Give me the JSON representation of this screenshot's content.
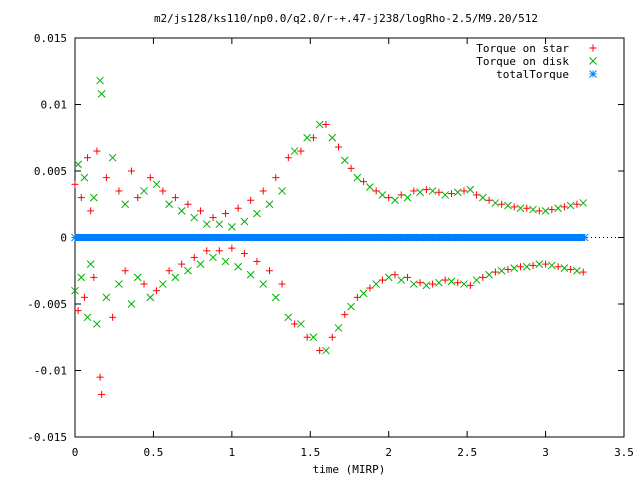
{
  "chart_data": {
    "type": "scatter",
    "title": "m2/js128/ks110/np0.0/q2.0/r-+.47-j238/logRho-2.5/M9.20/512",
    "xlabel": "time (MIRP)",
    "ylabel": "",
    "xlim": [
      0,
      3.5
    ],
    "ylim": [
      -0.015,
      0.015
    ],
    "x_ticks": [
      "0",
      "0.5",
      "1",
      "1.5",
      "2",
      "2.5",
      "3",
      "3.5"
    ],
    "y_ticks": [
      "0.015",
      "0.01",
      "0.005",
      "0",
      "-0.005",
      "-0.01",
      "-0.015"
    ],
    "legend_position": "top-right",
    "series": [
      {
        "name": "Torque on star",
        "marker": "plus",
        "color": "#ff0000",
        "x": [
          0.0,
          0.02,
          0.04,
          0.06,
          0.08,
          0.1,
          0.12,
          0.14,
          0.16,
          0.17,
          0.2,
          0.24,
          0.28,
          0.32,
          0.36,
          0.4,
          0.44,
          0.48,
          0.52,
          0.56,
          0.6,
          0.64,
          0.68,
          0.72,
          0.76,
          0.8,
          0.84,
          0.88,
          0.92,
          0.96,
          1.0,
          1.04,
          1.08,
          1.12,
          1.16,
          1.2,
          1.24,
          1.28,
          1.32,
          1.36,
          1.4,
          1.44,
          1.48,
          1.52,
          1.56,
          1.6,
          1.64,
          1.68,
          1.72,
          1.76,
          1.8,
          1.84,
          1.88,
          1.92,
          1.96,
          2.0,
          2.04,
          2.08,
          2.12,
          2.16,
          2.2,
          2.24,
          2.28,
          2.32,
          2.36,
          2.4,
          2.44,
          2.48,
          2.52,
          2.56,
          2.6,
          2.64,
          2.68,
          2.72,
          2.76,
          2.8,
          2.84,
          2.88,
          2.92,
          2.96,
          3.0,
          3.04,
          3.08,
          3.12,
          3.16,
          3.2,
          3.24
        ],
        "y": [
          0.004,
          -0.0055,
          0.003,
          -0.0045,
          0.006,
          0.002,
          -0.003,
          0.0065,
          -0.0105,
          -0.0118,
          0.0045,
          -0.006,
          0.0035,
          -0.0025,
          0.005,
          0.003,
          -0.0035,
          0.0045,
          -0.004,
          0.0035,
          -0.0025,
          0.003,
          -0.002,
          0.0025,
          -0.0015,
          0.002,
          -0.001,
          0.0015,
          -0.001,
          0.0018,
          -0.0008,
          0.0022,
          -0.0012,
          0.0028,
          -0.0018,
          0.0035,
          -0.0025,
          0.0045,
          -0.0035,
          0.006,
          -0.0065,
          0.0065,
          -0.0075,
          0.0075,
          -0.0085,
          0.0085,
          -0.0075,
          0.0068,
          -0.0058,
          0.0052,
          -0.0045,
          0.0042,
          -0.0038,
          0.0035,
          -0.0032,
          0.003,
          -0.0028,
          0.0032,
          -0.003,
          0.0035,
          -0.0034,
          0.0036,
          -0.0035,
          0.0034,
          -0.0032,
          0.0033,
          -0.0034,
          0.0035,
          -0.0036,
          0.0032,
          -0.003,
          0.0028,
          -0.0026,
          0.0025,
          -0.0024,
          0.0023,
          -0.0022,
          0.0022,
          -0.0021,
          0.002,
          -0.002,
          0.0021,
          -0.0022,
          0.0023,
          -0.0024,
          0.0025,
          -0.0026
        ]
      },
      {
        "name": "Torque on disk",
        "marker": "cross",
        "color": "#00b000",
        "x": [
          0.0,
          0.02,
          0.04,
          0.06,
          0.08,
          0.1,
          0.12,
          0.14,
          0.16,
          0.17,
          0.2,
          0.24,
          0.28,
          0.32,
          0.36,
          0.4,
          0.44,
          0.48,
          0.52,
          0.56,
          0.6,
          0.64,
          0.68,
          0.72,
          0.76,
          0.8,
          0.84,
          0.88,
          0.92,
          0.96,
          1.0,
          1.04,
          1.08,
          1.12,
          1.16,
          1.2,
          1.24,
          1.28,
          1.32,
          1.36,
          1.4,
          1.44,
          1.48,
          1.52,
          1.56,
          1.6,
          1.64,
          1.68,
          1.72,
          1.76,
          1.8,
          1.84,
          1.88,
          1.92,
          1.96,
          2.0,
          2.04,
          2.08,
          2.12,
          2.16,
          2.2,
          2.24,
          2.28,
          2.32,
          2.36,
          2.4,
          2.44,
          2.48,
          2.52,
          2.56,
          2.6,
          2.64,
          2.68,
          2.72,
          2.76,
          2.8,
          2.84,
          2.88,
          2.92,
          2.96,
          3.0,
          3.04,
          3.08,
          3.12,
          3.16,
          3.2,
          3.24
        ],
        "y": [
          -0.004,
          0.0055,
          -0.003,
          0.0045,
          -0.006,
          -0.002,
          0.003,
          -0.0065,
          0.0118,
          0.0108,
          -0.0045,
          0.006,
          -0.0035,
          0.0025,
          -0.005,
          -0.003,
          0.0035,
          -0.0045,
          0.004,
          -0.0035,
          0.0025,
          -0.003,
          0.002,
          -0.0025,
          0.0015,
          -0.002,
          0.001,
          -0.0015,
          0.001,
          -0.0018,
          0.0008,
          -0.0022,
          0.0012,
          -0.0028,
          0.0018,
          -0.0035,
          0.0025,
          -0.0045,
          0.0035,
          -0.006,
          0.0065,
          -0.0065,
          0.0075,
          -0.0075,
          0.0085,
          -0.0085,
          0.0075,
          -0.0068,
          0.0058,
          -0.0052,
          0.0045,
          -0.0042,
          0.0038,
          -0.0035,
          0.0032,
          -0.003,
          0.0028,
          -0.0032,
          0.003,
          -0.0035,
          0.0034,
          -0.0036,
          0.0035,
          -0.0034,
          0.0032,
          -0.0033,
          0.0034,
          -0.0035,
          0.0036,
          -0.0032,
          0.003,
          -0.0028,
          0.0026,
          -0.0025,
          0.0024,
          -0.0023,
          0.0022,
          -0.0022,
          0.0021,
          -0.002,
          0.002,
          -0.0021,
          0.0022,
          -0.0023,
          0.0024,
          -0.0025,
          0.0026
        ]
      },
      {
        "name": "totalTorque",
        "marker": "star",
        "color": "#0080ff",
        "x": [
          0.0,
          0.1,
          0.2,
          0.3,
          0.4,
          0.5,
          0.6,
          0.7,
          0.8,
          0.9,
          1.0,
          1.1,
          1.2,
          1.3,
          1.4,
          1.5,
          1.6,
          1.7,
          1.8,
          1.9,
          2.0,
          2.1,
          2.2,
          2.3,
          2.4,
          2.5,
          2.6,
          2.7,
          2.8,
          2.9,
          3.0,
          3.1,
          3.2,
          3.25
        ],
        "y": [
          0,
          0,
          0,
          0,
          0,
          0,
          0,
          0,
          0,
          0,
          0,
          0,
          0,
          0,
          0,
          0,
          0,
          0,
          0,
          0,
          0,
          0,
          0,
          0,
          0,
          0,
          0,
          0,
          0,
          0,
          0,
          0,
          0,
          0
        ]
      }
    ]
  }
}
